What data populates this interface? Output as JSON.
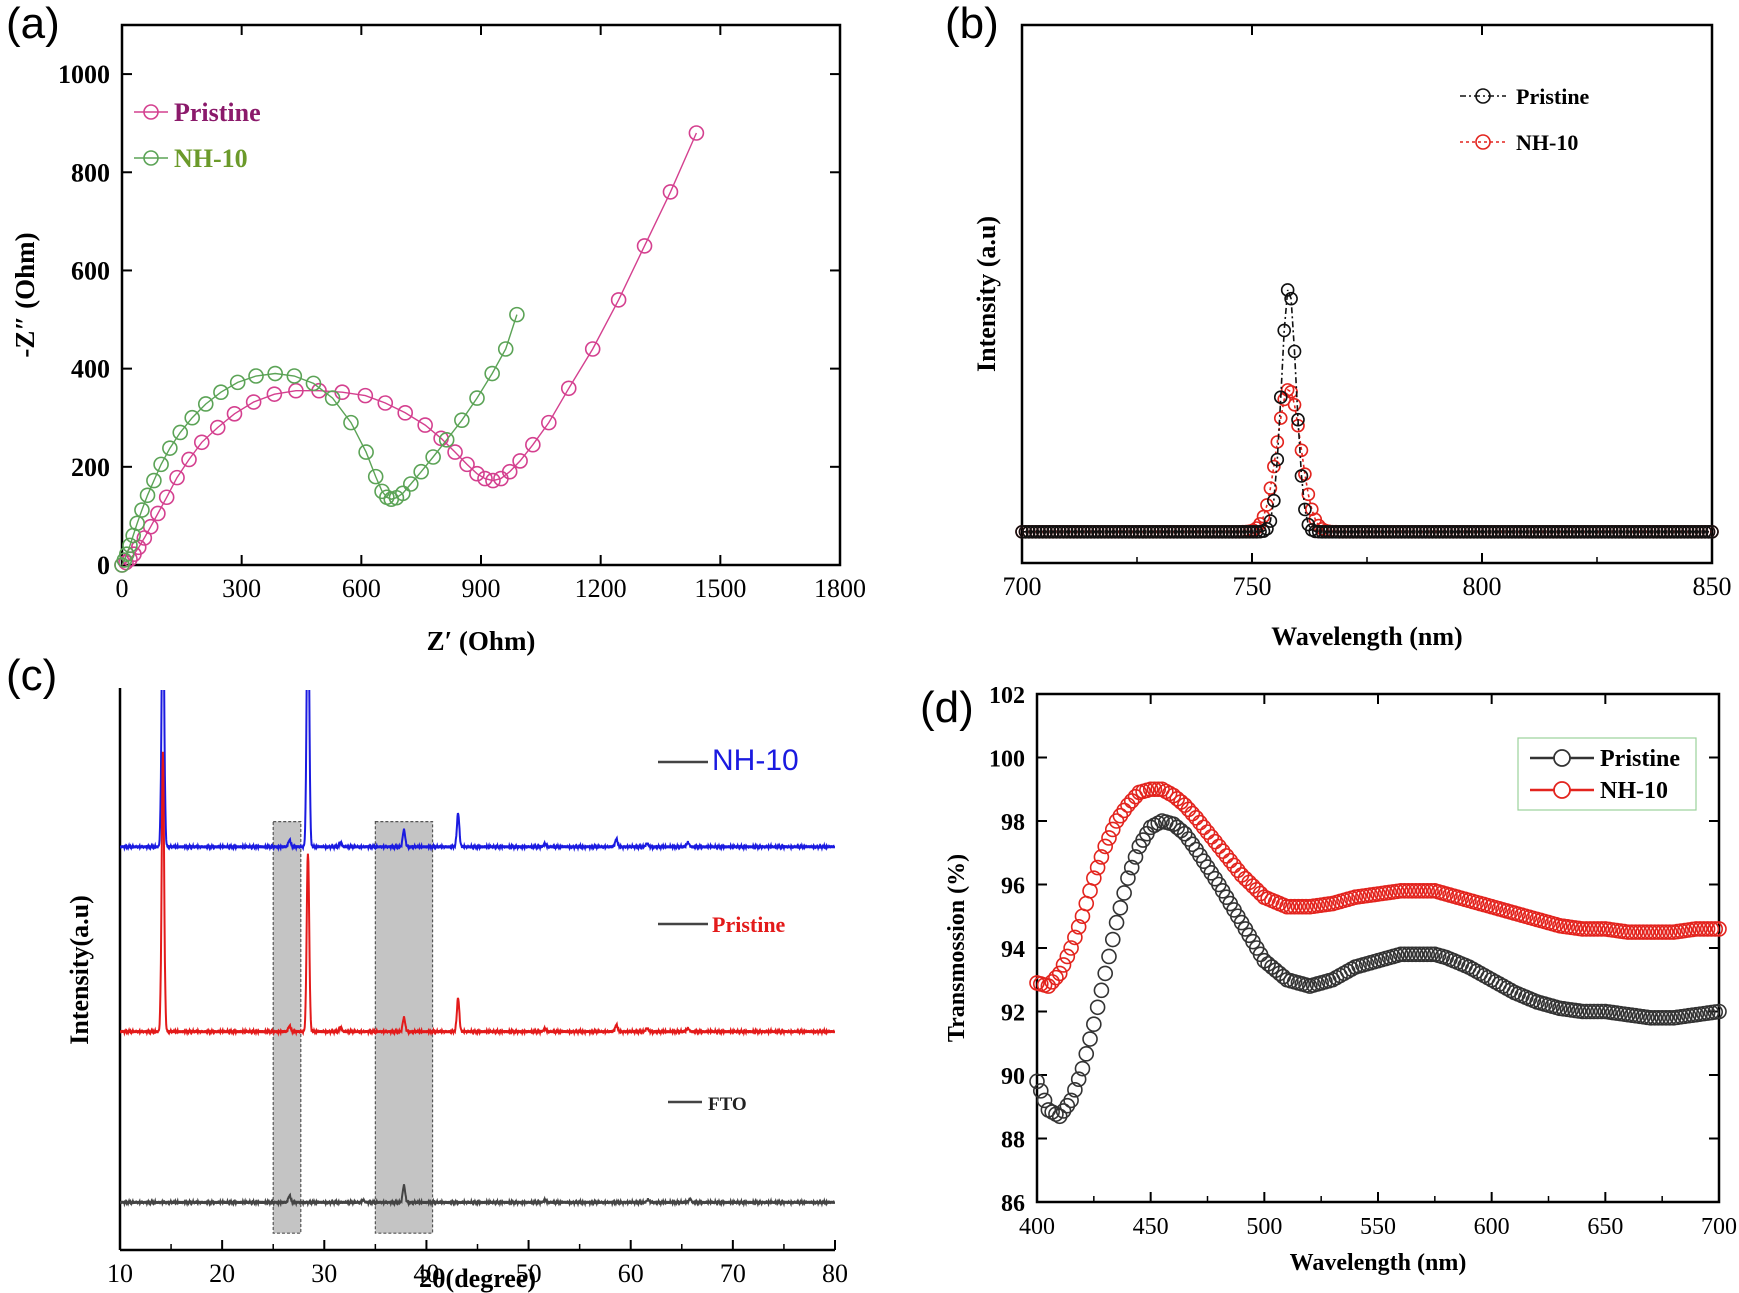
{
  "chart_data": [
    {
      "panel": "(a)",
      "type": "scatter",
      "xlabel": "Z′ (Ohm)",
      "ylabel": "-Z″ (Ohm)",
      "xlim": [
        0,
        1800
      ],
      "ylim": [
        0,
        1100
      ],
      "xticks": [
        "0",
        "300",
        "600",
        "900",
        "1200",
        "1500",
        "1800"
      ],
      "yticks": [
        "0",
        "200",
        "400",
        "600",
        "800",
        "1000"
      ],
      "legend": "top-left",
      "colors": {
        "Pristine": "#d4408f",
        "NH-10": "#5ba356"
      },
      "legend_text_colors": {
        "Pristine": "#8b1a6b",
        "NH-10": "#6b9a2a"
      },
      "series": [
        {
          "name": "Pristine",
          "marker": "open-circle",
          "x": [
            0,
            10,
            20,
            30,
            42,
            56,
            72,
            90,
            112,
            138,
            168,
            200,
            240,
            282,
            330,
            382,
            436,
            494,
            552,
            610,
            660,
            710,
            760,
            800,
            835,
            865,
            890,
            910,
            930,
            950,
            972,
            998,
            1030,
            1070,
            1120,
            1180,
            1245,
            1310,
            1375,
            1440
          ],
          "y": [
            0,
            5,
            12,
            22,
            36,
            55,
            78,
            105,
            138,
            178,
            215,
            250,
            280,
            308,
            332,
            348,
            355,
            355,
            352,
            345,
            330,
            310,
            285,
            258,
            230,
            205,
            186,
            176,
            172,
            176,
            190,
            212,
            245,
            290,
            360,
            440,
            540,
            650,
            760,
            880
          ]
        },
        {
          "name": "NH-10",
          "marker": "open-circle",
          "x": [
            0,
            6,
            12,
            20,
            28,
            38,
            50,
            64,
            80,
            98,
            120,
            146,
            176,
            210,
            248,
            290,
            336,
            384,
            432,
            480,
            528,
            574,
            612,
            636,
            652,
            664,
            675,
            688,
            704,
            724,
            750,
            780,
            814,
            852,
            890,
            928,
            962,
            990
          ],
          "y": [
            0,
            10,
            22,
            40,
            60,
            85,
            112,
            142,
            172,
            205,
            238,
            270,
            300,
            328,
            352,
            372,
            385,
            390,
            385,
            370,
            340,
            290,
            230,
            180,
            150,
            138,
            134,
            137,
            146,
            165,
            190,
            220,
            255,
            295,
            340,
            390,
            440,
            510
          ]
        }
      ]
    },
    {
      "panel": "(b)",
      "type": "scatter",
      "xlabel": "Wavelength (nm)",
      "ylabel": "Intensity (a.u)",
      "xlim": [
        700,
        850
      ],
      "ylim": [
        0,
        1
      ],
      "xticks": [
        "700",
        "750",
        "800",
        "850"
      ],
      "legend": "top-right",
      "colors": {
        "Pristine": "#111111",
        "NH-10": "#e3241e"
      },
      "series": [
        {
          "name": "Pristine",
          "marker": "open-circle",
          "line": "dash-dot",
          "peak_center": 758,
          "peak_height": 0.455,
          "peak_sigma": 1.6,
          "baseline": 0.058
        },
        {
          "name": "NH-10",
          "marker": "open-circle",
          "line": "dotted",
          "peak_center": 758,
          "peak_height": 0.265,
          "peak_sigma": 2.6,
          "baseline": 0.058
        }
      ]
    },
    {
      "panel": "(c)",
      "type": "line",
      "xlabel": "2θ(degree)",
      "ylabel": "Intensity(a.u)",
      "xlim": [
        10,
        80
      ],
      "xticks": [
        "10",
        "20",
        "30",
        "40",
        "50",
        "60",
        "70",
        "80"
      ],
      "shaded_regions": [
        [
          25,
          27.7
        ],
        [
          35,
          40.6
        ]
      ],
      "series": [
        {
          "name": "NH-10",
          "color": "#1a1ae0",
          "offset": 0.72,
          "peaks": [
            [
              14.2,
              0.5
            ],
            [
              26.6,
              0.012
            ],
            [
              28.4,
              0.5
            ],
            [
              31.6,
              0.008
            ],
            [
              37.8,
              0.03
            ],
            [
              43.1,
              0.06
            ],
            [
              51.6,
              0.006
            ],
            [
              58.6,
              0.014
            ],
            [
              61.6,
              0.006
            ],
            [
              65.6,
              0.008
            ]
          ]
        },
        {
          "name": "Pristine",
          "color": "#e31a1a",
          "offset": 0.39,
          "peaks": [
            [
              14.2,
              0.5
            ],
            [
              26.6,
              0.01
            ],
            [
              28.4,
              0.32
            ],
            [
              31.6,
              0.008
            ],
            [
              37.8,
              0.025
            ],
            [
              43.1,
              0.06
            ],
            [
              51.6,
              0.006
            ],
            [
              58.6,
              0.012
            ],
            [
              61.6,
              0.006
            ],
            [
              65.6,
              0.006
            ]
          ]
        },
        {
          "name": "FTO",
          "color": "#444444",
          "offset": 0.085,
          "peaks": [
            [
              26.6,
              0.012
            ],
            [
              33.8,
              0.004
            ],
            [
              37.8,
              0.03
            ],
            [
              51.6,
              0.005
            ],
            [
              61.7,
              0.005
            ],
            [
              65.8,
              0.006
            ]
          ]
        }
      ]
    },
    {
      "panel": "(d)",
      "type": "scatter",
      "xlabel": "Wavelength (nm)",
      "ylabel": "Transmossion (%)",
      "xlim": [
        400,
        700
      ],
      "ylim": [
        86,
        102
      ],
      "xticks": [
        "400",
        "450",
        "500",
        "550",
        "600",
        "650",
        "700"
      ],
      "yticks": [
        "86",
        "88",
        "90",
        "92",
        "94",
        "96",
        "98",
        "100",
        "102"
      ],
      "legend": "top-right",
      "colors": {
        "Pristine": "#333333",
        "NH-10": "#e3241e"
      },
      "series": [
        {
          "name": "Pristine",
          "marker": "open-circle",
          "x": [
            400,
            405,
            410,
            415,
            420,
            425,
            430,
            435,
            440,
            445,
            450,
            455,
            460,
            465,
            470,
            480,
            490,
            500,
            510,
            520,
            530,
            540,
            550,
            560,
            570,
            575,
            580,
            590,
            600,
            610,
            620,
            630,
            640,
            650,
            660,
            670,
            680,
            690,
            700
          ],
          "y": [
            89.8,
            88.9,
            88.7,
            89.2,
            90.2,
            91.6,
            93.2,
            94.8,
            96.2,
            97.2,
            97.8,
            98.0,
            97.9,
            97.6,
            97.1,
            96.0,
            94.8,
            93.6,
            93.0,
            92.8,
            93.0,
            93.4,
            93.6,
            93.8,
            93.8,
            93.8,
            93.7,
            93.4,
            93.0,
            92.6,
            92.3,
            92.1,
            92.0,
            92.0,
            91.9,
            91.8,
            91.8,
            91.9,
            92.0
          ]
        },
        {
          "name": "NH-10",
          "marker": "open-circle",
          "x": [
            400,
            405,
            410,
            415,
            420,
            425,
            430,
            435,
            440,
            445,
            450,
            455,
            460,
            465,
            470,
            480,
            490,
            500,
            510,
            520,
            530,
            540,
            550,
            560,
            570,
            575,
            580,
            590,
            600,
            610,
            620,
            630,
            640,
            650,
            660,
            670,
            680,
            690,
            700
          ],
          "y": [
            92.9,
            92.8,
            93.2,
            94.0,
            95.0,
            96.2,
            97.2,
            98.0,
            98.5,
            98.9,
            99.0,
            99.0,
            98.8,
            98.5,
            98.1,
            97.2,
            96.3,
            95.6,
            95.3,
            95.3,
            95.4,
            95.6,
            95.7,
            95.8,
            95.8,
            95.8,
            95.7,
            95.5,
            95.3,
            95.1,
            94.9,
            94.7,
            94.6,
            94.6,
            94.5,
            94.5,
            94.5,
            94.6,
            94.6
          ]
        }
      ]
    }
  ]
}
